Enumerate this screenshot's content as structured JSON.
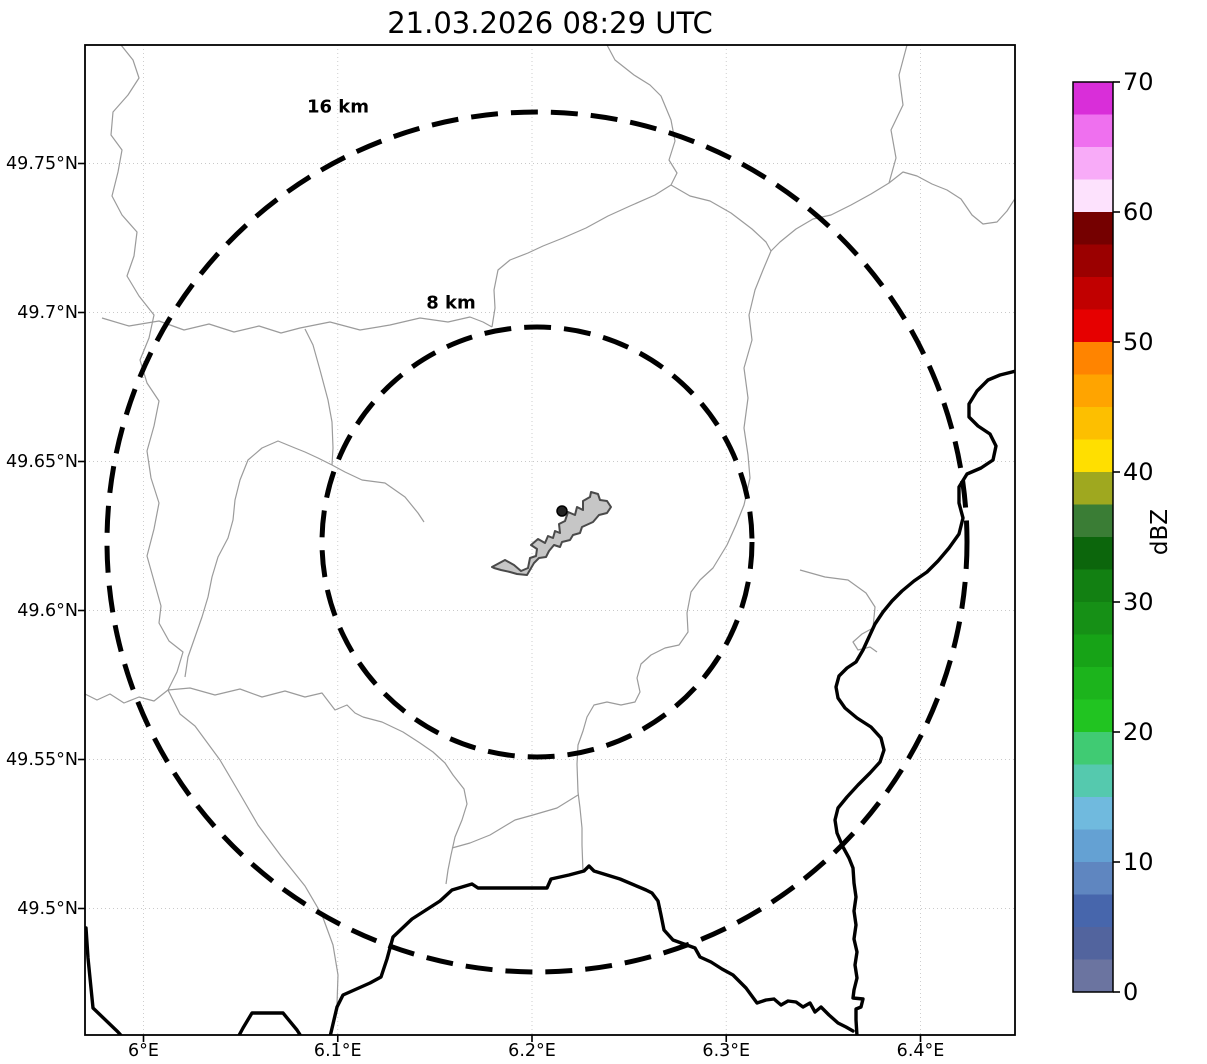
{
  "figure": {
    "title": "21.03.2026 08:29 UTC"
  },
  "map": {
    "x_axis": {
      "ticks": [
        {
          "value": 6.0,
          "label": "6°E"
        },
        {
          "value": 6.1,
          "label": "6.1°E"
        },
        {
          "value": 6.2,
          "label": "6.2°E"
        },
        {
          "value": 6.3,
          "label": "6.3°E"
        },
        {
          "value": 6.4,
          "label": "6.4°E"
        }
      ]
    },
    "y_axis": {
      "ticks": [
        {
          "value": 49.75,
          "label": "49.75°N"
        },
        {
          "value": 49.7,
          "label": "49.7°N"
        },
        {
          "value": 49.65,
          "label": "49.65°N"
        },
        {
          "value": 49.6,
          "label": "49.6°N"
        },
        {
          "value": 49.55,
          "label": "49.55°N"
        },
        {
          "value": 49.5,
          "label": "49.5°N"
        }
      ]
    },
    "range_rings": [
      {
        "label": "8 km",
        "radius_km": 8
      },
      {
        "label": "16 km",
        "radius_km": 16
      }
    ],
    "style": {
      "grid_color": "#c9c9c9",
      "boundary_color": "#9b9b9b",
      "border_color": "#000000",
      "ring_color": "#000000",
      "city_fill": "#c6c6c6",
      "city_outline": "#4a4a4a",
      "marker_color": "#222222"
    }
  },
  "colorbar": {
    "label": "dBZ",
    "min": 0,
    "max": 70,
    "ticks": [
      0,
      10,
      20,
      30,
      40,
      50,
      60,
      70
    ],
    "segments": [
      {
        "from": 0.0,
        "to": 2.5,
        "color": "#6b74a0"
      },
      {
        "from": 2.5,
        "to": 5.0,
        "color": "#52649e"
      },
      {
        "from": 5.0,
        "to": 7.5,
        "color": "#4766ac"
      },
      {
        "from": 7.5,
        "to": 10.0,
        "color": "#5f86c0"
      },
      {
        "from": 10.0,
        "to": 12.5,
        "color": "#64a1d3"
      },
      {
        "from": 12.5,
        "to": 15.0,
        "color": "#70bade"
      },
      {
        "from": 15.0,
        "to": 17.5,
        "color": "#55c9ae"
      },
      {
        "from": 17.5,
        "to": 20.0,
        "color": "#40cb73"
      },
      {
        "from": 20.0,
        "to": 22.5,
        "color": "#21c421"
      },
      {
        "from": 22.5,
        "to": 25.0,
        "color": "#1cb41c"
      },
      {
        "from": 25.0,
        "to": 27.5,
        "color": "#17a317"
      },
      {
        "from": 27.5,
        "to": 30.0,
        "color": "#169016"
      },
      {
        "from": 30.0,
        "to": 32.5,
        "color": "#128012"
      },
      {
        "from": 32.5,
        "to": 35.0,
        "color": "#0c660c"
      },
      {
        "from": 35.0,
        "to": 37.5,
        "color": "#3a7d35"
      },
      {
        "from": 37.5,
        "to": 40.0,
        "color": "#9fa81f"
      },
      {
        "from": 40.0,
        "to": 42.5,
        "color": "#ffdf00"
      },
      {
        "from": 42.5,
        "to": 45.0,
        "color": "#fdbf00"
      },
      {
        "from": 45.0,
        "to": 47.5,
        "color": "#ffa400"
      },
      {
        "from": 47.5,
        "to": 50.0,
        "color": "#ff8400"
      },
      {
        "from": 50.0,
        "to": 52.5,
        "color": "#e60000"
      },
      {
        "from": 52.5,
        "to": 55.0,
        "color": "#c10000"
      },
      {
        "from": 55.0,
        "to": 57.5,
        "color": "#9b0000"
      },
      {
        "from": 57.5,
        "to": 60.0,
        "color": "#750000"
      },
      {
        "from": 60.0,
        "to": 62.5,
        "color": "#fde2fd"
      },
      {
        "from": 62.5,
        "to": 65.0,
        "color": "#f8abf8"
      },
      {
        "from": 65.0,
        "to": 67.5,
        "color": "#ef70ef"
      },
      {
        "from": 67.5,
        "to": 70.0,
        "color": "#d92ed9"
      }
    ]
  }
}
